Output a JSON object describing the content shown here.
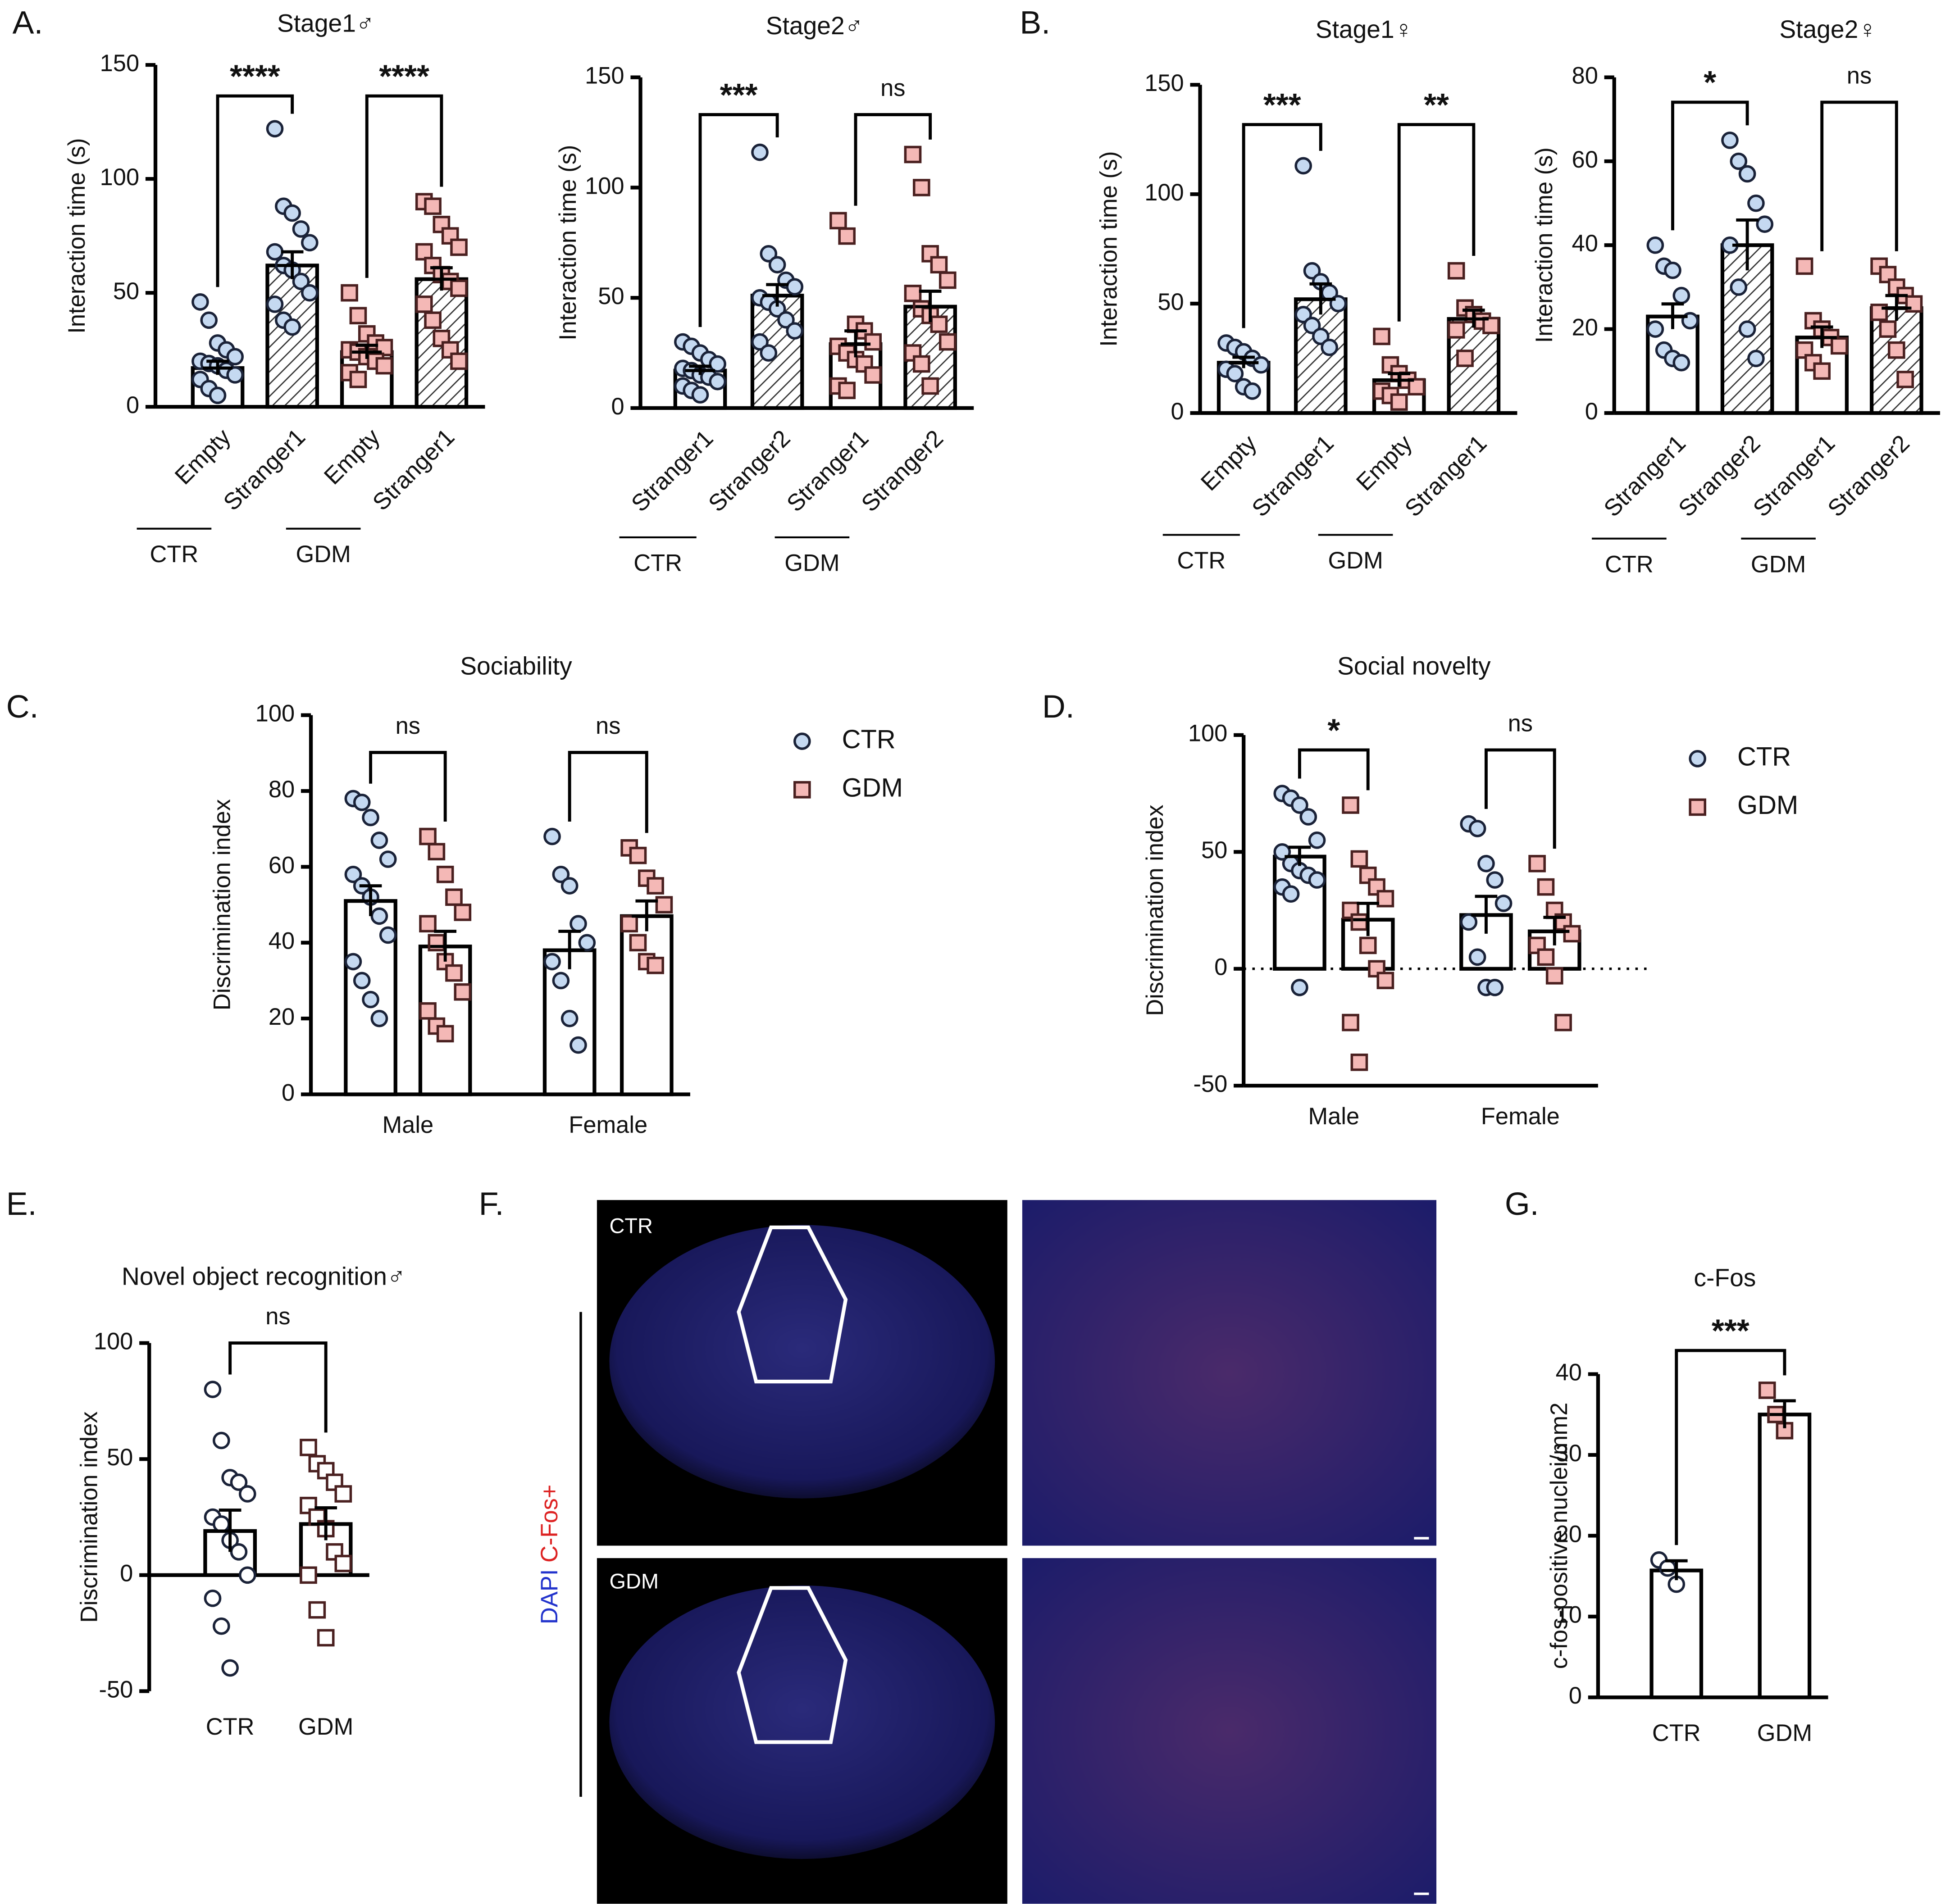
{
  "chart_data": [
    {
      "type": "bar",
      "panel": "A.",
      "title": "Stage1♂",
      "y_label": "Interaction time (s)",
      "categories": [
        "Empty",
        "Stranger1",
        "Empty",
        "Stranger1"
      ],
      "groups": [
        "CTR",
        "GDM"
      ],
      "values": [
        17,
        62,
        24,
        56
      ],
      "errors": [
        3,
        6,
        3,
        5
      ],
      "points": [
        [
          46,
          38,
          28,
          25,
          22,
          20,
          19,
          18,
          16,
          14,
          12,
          8,
          5
        ],
        [
          122,
          88,
          85,
          78,
          72,
          68,
          62,
          60,
          55,
          50,
          45,
          38,
          35
        ],
        [
          50,
          40,
          32,
          28,
          26,
          25,
          24,
          22,
          20,
          18,
          15,
          12
        ],
        [
          90,
          88,
          80,
          75,
          70,
          68,
          62,
          58,
          55,
          52,
          45,
          38,
          30,
          25,
          20
        ]
      ],
      "colors": [
        "#c5d9f1",
        "#c5d9f1",
        "#f4b8b6",
        "#f4b8b6"
      ],
      "markers": [
        "circle",
        "circle",
        "square",
        "square"
      ],
      "hatched": [
        false,
        true,
        false,
        true
      ],
      "ylim": [
        0,
        150
      ],
      "yticks": [
        0,
        50,
        100,
        150
      ],
      "comparisons": [
        "****",
        "****"
      ]
    },
    {
      "type": "bar",
      "title": "Stage2♂",
      "y_label": "Interaction time (s)",
      "categories": [
        "Stranger1",
        "Stranger2",
        "Stranger1",
        "Stranger2"
      ],
      "groups": [
        "CTR",
        "GDM"
      ],
      "values": [
        17,
        51,
        29,
        46
      ],
      "errors": [
        2,
        5,
        6,
        7
      ],
      "points": [
        [
          30,
          28,
          25,
          22,
          20,
          18,
          17,
          15,
          14,
          12,
          10,
          8,
          6
        ],
        [
          116,
          70,
          65,
          58,
          55,
          50,
          48,
          45,
          40,
          35,
          30,
          25
        ],
        [
          85,
          78,
          38,
          35,
          30,
          28,
          25,
          22,
          20,
          15,
          10,
          8
        ],
        [
          115,
          100,
          70,
          65,
          58,
          52,
          45,
          42,
          38,
          30,
          25,
          20,
          10
        ]
      ],
      "colors": [
        "#c5d9f1",
        "#c5d9f1",
        "#f4b8b6",
        "#f4b8b6"
      ],
      "markers": [
        "circle",
        "circle",
        "square",
        "square"
      ],
      "hatched": [
        false,
        true,
        false,
        true
      ],
      "ylim": [
        0,
        150
      ],
      "yticks": [
        0,
        50,
        100,
        150
      ],
      "comparisons": [
        "***",
        "ns"
      ]
    },
    {
      "type": "bar",
      "panel": "B.",
      "title": "Stage1♀",
      "y_label": "Interaction time (s)",
      "categories": [
        "Empty",
        "Stranger1",
        "Empty",
        "Stranger1"
      ],
      "groups": [
        "CTR",
        "GDM"
      ],
      "values": [
        23,
        52,
        15,
        43
      ],
      "errors": [
        2.5,
        7,
        3,
        4
      ],
      "points": [
        [
          32,
          30,
          28,
          25,
          22,
          20,
          18,
          12,
          10
        ],
        [
          113,
          65,
          60,
          55,
          50,
          45,
          40,
          35,
          30
        ],
        [
          35,
          22,
          18,
          15,
          12,
          10,
          8,
          5
        ],
        [
          65,
          48,
          45,
          42,
          40,
          38,
          25
        ]
      ],
      "colors": [
        "#c5d9f1",
        "#c5d9f1",
        "#f4b8b6",
        "#f4b8b6"
      ],
      "markers": [
        "circle",
        "circle",
        "square",
        "square"
      ],
      "hatched": [
        false,
        true,
        false,
        true
      ],
      "ylim": [
        0,
        150
      ],
      "yticks": [
        0,
        50,
        100,
        150
      ],
      "comparisons": [
        "***",
        "**"
      ]
    },
    {
      "type": "bar",
      "title": "Stage2♀",
      "y_label": "Interaction time (s)",
      "categories": [
        "Stranger1",
        "Stranger2",
        "Stranger1",
        "Stranger2"
      ],
      "groups": [
        "CTR",
        "GDM"
      ],
      "values": [
        23,
        40,
        18,
        25
      ],
      "errors": [
        3,
        6,
        2.5,
        3
      ],
      "points": [
        [
          40,
          35,
          34,
          28,
          22,
          20,
          15,
          13,
          12
        ],
        [
          65,
          60,
          57,
          50,
          45,
          40,
          30,
          20,
          13
        ],
        [
          35,
          22,
          20,
          18,
          16,
          15,
          12,
          10
        ],
        [
          35,
          33,
          30,
          28,
          26,
          24,
          20,
          15,
          8
        ]
      ],
      "colors": [
        "#c5d9f1",
        "#c5d9f1",
        "#f4b8b6",
        "#f4b8b6"
      ],
      "markers": [
        "circle",
        "circle",
        "square",
        "square"
      ],
      "hatched": [
        false,
        true,
        false,
        true
      ],
      "ylim": [
        0,
        80
      ],
      "yticks": [
        0,
        20,
        40,
        60,
        80
      ],
      "comparisons": [
        "*",
        "ns"
      ]
    },
    {
      "type": "grouped_bar",
      "panel": "C.",
      "title": "Sociability",
      "y_label": "Discrimination index",
      "categories": [
        "Male",
        "Female"
      ],
      "series": [
        {
          "name": "CTR",
          "color": "#c5d9f1",
          "marker": "circle",
          "values": [
            51,
            38
          ],
          "errors": [
            4,
            5
          ],
          "points": [
            [
              78,
              77,
              73,
              67,
              62,
              58,
              55,
              52,
              47,
              42,
              35,
              30,
              25,
              20
            ],
            [
              68,
              58,
              55,
              45,
              40,
              35,
              30,
              20,
              13
            ]
          ]
        },
        {
          "name": "GDM",
          "color": "#f4b8b6",
          "marker": "square",
          "values": [
            39,
            47
          ],
          "errors": [
            4,
            4
          ],
          "points": [
            [
              68,
              64,
              58,
              52,
              48,
              45,
              40,
              35,
              32,
              27,
              22,
              18,
              16
            ],
            [
              65,
              63,
              57,
              55,
              50,
              45,
              40,
              35,
              34
            ]
          ]
        }
      ],
      "ylim": [
        0,
        100
      ],
      "yticks": [
        0,
        20,
        40,
        60,
        80,
        100
      ],
      "comparisons": [
        "ns",
        "ns"
      ]
    },
    {
      "type": "grouped_bar",
      "panel": "D.",
      "title": "Social novelty",
      "y_label": "Discrimination index",
      "categories": [
        "Male",
        "Female"
      ],
      "series": [
        {
          "name": "CTR",
          "color": "#c5d9f1",
          "marker": "circle",
          "values": [
            48,
            23
          ],
          "errors": [
            4,
            8
          ],
          "points": [
            [
              75,
              73,
              70,
              65,
              55,
              50,
              45,
              42,
              40,
              38,
              35,
              32,
              -8
            ],
            [
              62,
              60,
              45,
              38,
              28,
              20,
              5,
              -8,
              -8
            ]
          ]
        },
        {
          "name": "GDM",
          "color": "#f4b8b6",
          "marker": "square",
          "values": [
            21,
            16
          ],
          "errors": [
            7,
            6
          ],
          "points": [
            [
              70,
              47,
              40,
              35,
              30,
              25,
              20,
              10,
              0,
              -5,
              -23,
              -40
            ],
            [
              45,
              35,
              25,
              20,
              15,
              10,
              5,
              -3,
              -23
            ]
          ]
        }
      ],
      "ylim": [
        -50,
        100
      ],
      "yticks": [
        -50,
        0,
        50,
        100
      ],
      "zero_line": "dotted",
      "comparisons": [
        "*",
        "ns"
      ]
    },
    {
      "type": "bar",
      "panel": "E.",
      "title": "Novel object recognition♂",
      "y_label": "Discrimination index",
      "categories": [
        "CTR",
        "GDM"
      ],
      "values": [
        19,
        22
      ],
      "errors": [
        9,
        7
      ],
      "points": [
        [
          80,
          58,
          42,
          40,
          35,
          25,
          22,
          15,
          10,
          0,
          -10,
          -22,
          -40
        ],
        [
          55,
          48,
          45,
          40,
          35,
          30,
          25,
          20,
          10,
          5,
          0,
          -15,
          -27
        ]
      ],
      "colors": [
        "#ffffff",
        "#ffffff"
      ],
      "markers": [
        "circle",
        "square"
      ],
      "hatched": [
        false,
        false
      ],
      "ylim": [
        -50,
        100
      ],
      "yticks": [
        -50,
        0,
        50,
        100
      ],
      "comparisons": [
        "ns"
      ]
    },
    {
      "type": "bar",
      "panel": "G.",
      "title": "c-Fos",
      "y_label": "c-fos-positive nuclei/mm2",
      "categories": [
        "CTR",
        "GDM"
      ],
      "values": [
        15.7,
        35
      ],
      "errors": [
        1.2,
        1.7
      ],
      "points": [
        [
          17,
          16,
          14
        ],
        [
          38,
          35,
          33
        ]
      ],
      "colors": [
        "#ffffff",
        "#f4b8b6"
      ],
      "markers": [
        "circle",
        "square"
      ],
      "hatched": [
        false,
        false
      ],
      "ylim": [
        0,
        40
      ],
      "yticks": [
        0,
        10,
        20,
        30,
        40
      ],
      "comparisons": [
        "***"
      ]
    }
  ],
  "figure": {
    "panel_F": {
      "label": "F.",
      "images": [
        "CTR",
        "GDM"
      ],
      "stain": [
        "DAPI",
        "C-Fos+"
      ]
    }
  }
}
